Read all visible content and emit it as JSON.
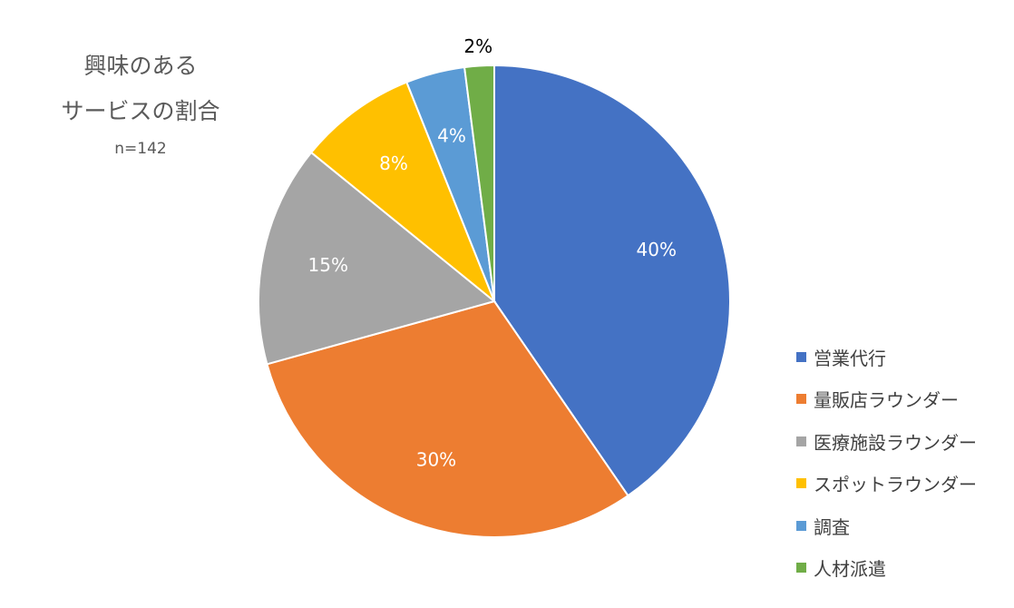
{
  "colors": {
    "slice": [
      "#4472C4",
      "#ED7D31",
      "#A5A5A5",
      "#FFC000",
      "#5B9BD5",
      "#70AD47"
    ],
    "label_dark": "#000000",
    "label_light": "#FFFFFF",
    "title": "#595959"
  },
  "chart_data": {
    "type": "pie",
    "title": "興味のある サービスの割合",
    "title_lines": [
      "興味のある",
      "サービスの割合"
    ],
    "subtitle": "n=142",
    "legend_position": "right",
    "start_angle": "12 o'clock, clockwise",
    "categories": [
      "営業代行",
      "量販店ラウンダー",
      "医療施設ラウンダー",
      "スポットラウンダー",
      "調査",
      "人材派遣"
    ],
    "values": [
      40,
      30,
      15,
      8,
      4,
      2
    ],
    "labels": [
      "40%",
      "30%",
      "15%",
      "8%",
      "4%",
      "2%"
    ]
  }
}
